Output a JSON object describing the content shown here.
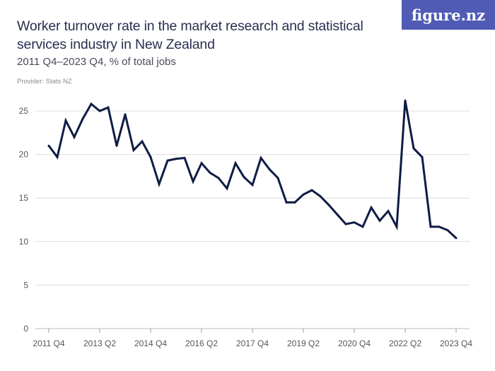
{
  "header": {
    "title": "Worker turnover rate in the market research and statistical services industry in New Zealand",
    "subtitle": "2011 Q4–2023 Q4, % of total jobs",
    "provider": "Provider: Stats NZ",
    "logo": "figure.nz"
  },
  "colors": {
    "line": "#0f1c45",
    "grid": "#dddddd",
    "logo_bg": "#4f5bb4"
  },
  "chart_data": {
    "type": "line",
    "title": "Worker turnover rate in the market research and statistical services industry in New Zealand",
    "subtitle": "2011 Q4–2023 Q4, % of total jobs",
    "xlabel": "",
    "ylabel": "",
    "ylim": [
      0,
      25
    ],
    "yticks": [
      0,
      5,
      10,
      15,
      20,
      25
    ],
    "xtick_labels": [
      "2011 Q4",
      "2013 Q2",
      "2014 Q4",
      "2016 Q2",
      "2017 Q4",
      "2019 Q2",
      "2020 Q4",
      "2022 Q2",
      "2023 Q4"
    ],
    "grid": true,
    "x": [
      "2011 Q4",
      "2012 Q1",
      "2012 Q2",
      "2012 Q3",
      "2012 Q4",
      "2013 Q1",
      "2013 Q2",
      "2013 Q3",
      "2013 Q4",
      "2014 Q1",
      "2014 Q2",
      "2014 Q3",
      "2014 Q4",
      "2015 Q1",
      "2015 Q2",
      "2015 Q3",
      "2015 Q4",
      "2016 Q1",
      "2016 Q2",
      "2016 Q3",
      "2016 Q4",
      "2017 Q1",
      "2017 Q2",
      "2017 Q3",
      "2017 Q4",
      "2018 Q1",
      "2018 Q2",
      "2018 Q3",
      "2018 Q4",
      "2019 Q1",
      "2019 Q2",
      "2019 Q3",
      "2019 Q4",
      "2020 Q1",
      "2020 Q2",
      "2020 Q3",
      "2020 Q4",
      "2021 Q1",
      "2021 Q2",
      "2021 Q3",
      "2021 Q4",
      "2022 Q1",
      "2022 Q2",
      "2022 Q3",
      "2022 Q4",
      "2023 Q1",
      "2023 Q2",
      "2023 Q3",
      "2023 Q4"
    ],
    "values": [
      21.0,
      19.7,
      23.9,
      22.0,
      24.1,
      25.8,
      25.0,
      25.4,
      21.0,
      24.6,
      20.5,
      21.5,
      19.7,
      16.6,
      19.3,
      19.5,
      19.6,
      16.9,
      19.0,
      17.9,
      17.3,
      16.1,
      19.0,
      17.4,
      16.5,
      19.6,
      18.3,
      17.3,
      14.5,
      14.5,
      15.4,
      15.9,
      15.2,
      14.2,
      13.1,
      12.0,
      12.2,
      11.7,
      13.9,
      12.4,
      13.5,
      11.7,
      26.2,
      20.7,
      19.7,
      11.7,
      11.7,
      11.3,
      10.4
    ]
  }
}
